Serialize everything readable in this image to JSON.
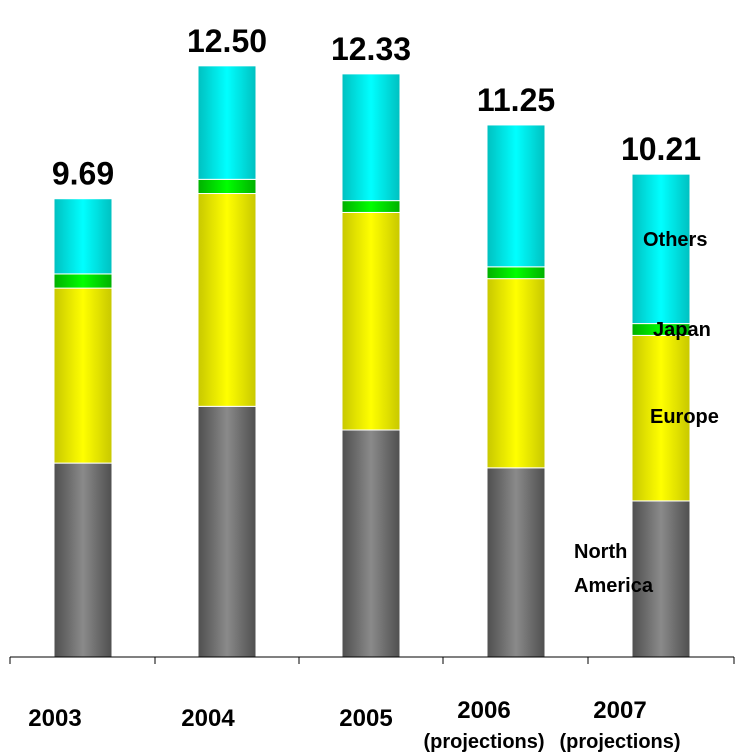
{
  "chart_data": {
    "type": "bar",
    "stacked": true,
    "categories": [
      "2003",
      "2004",
      "2005",
      "2006",
      "2007"
    ],
    "category_notes": [
      "",
      "",
      "",
      "(projections)",
      "(projections)"
    ],
    "totals": [
      9.69,
      12.5,
      12.33,
      11.25,
      10.21
    ],
    "total_labels": [
      "9.69",
      "12.50",
      "12.33",
      "11.25",
      "10.21"
    ],
    "series": [
      {
        "name": "North America",
        "color": "#6e6e6e",
        "values": [
          4.1,
          5.3,
          4.8,
          4.0,
          3.3
        ]
      },
      {
        "name": "Europe",
        "color": "#ecec00",
        "values": [
          3.7,
          4.5,
          4.6,
          4.0,
          3.5
        ]
      },
      {
        "name": "Japan",
        "color": "#00e000",
        "values": [
          0.3,
          0.3,
          0.25,
          0.25,
          0.25
        ]
      },
      {
        "name": "Others",
        "color": "#00e6e6",
        "values": [
          1.59,
          2.4,
          2.68,
          3.0,
          3.16
        ]
      }
    ],
    "series_labels": [
      "North\nAmerica",
      "Europe",
      "Japan",
      "Others"
    ],
    "ylim": [
      0,
      13.3
    ],
    "grid": false,
    "legend": "inline labels on 2007 bar"
  }
}
